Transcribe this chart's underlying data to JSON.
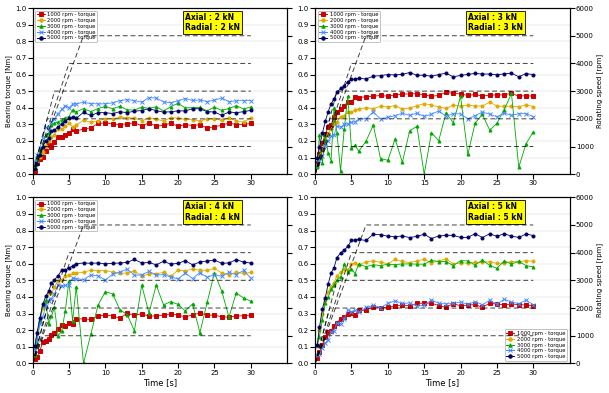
{
  "subplots": [
    {
      "label": "Axial : 2 kN\nRadial : 2 kN",
      "legend_loc": "upper left",
      "show_legend": true,
      "show_ylabel": true,
      "show_ylabel2": false,
      "show_xlabel": false,
      "torques": {
        "1000": {
          "final": 0.3,
          "tau": 2.8,
          "noise": 0.008
        },
        "2000": {
          "final": 0.33,
          "tau": 2.4,
          "noise": 0.008
        },
        "3000": {
          "final": 0.4,
          "tau": 2.2,
          "noise": 0.01
        },
        "4000": {
          "final": 0.44,
          "tau": 2.0,
          "noise": 0.012
        },
        "5000": {
          "final": 0.38,
          "tau": 2.5,
          "noise": 0.01
        }
      }
    },
    {
      "label": "Axial : 3 kN\nRadial : 3 kN",
      "legend_loc": "upper left",
      "show_legend": true,
      "show_ylabel": false,
      "show_ylabel2": true,
      "show_xlabel": false,
      "torques": {
        "1000": {
          "final": 0.48,
          "tau": 2.0,
          "noise": 0.008
        },
        "2000": {
          "final": 0.41,
          "tau": 2.0,
          "noise": 0.008
        },
        "3000": {
          "final": 0.28,
          "tau": 2.5,
          "noise": 0.05,
          "noisy": true
        },
        "4000": {
          "final": 0.36,
          "tau": 2.2,
          "noise": 0.012
        },
        "5000": {
          "final": 0.6,
          "tau": 1.8,
          "noise": 0.008
        }
      }
    },
    {
      "label": "Axial : 4 kN\nRadial : 4 kN",
      "legend_loc": "upper left",
      "show_legend": true,
      "show_ylabel": true,
      "show_ylabel2": false,
      "show_xlabel": true,
      "torques": {
        "1000": {
          "final": 0.29,
          "tau": 2.8,
          "noise": 0.008
        },
        "2000": {
          "final": 0.55,
          "tau": 1.6,
          "noise": 0.01
        },
        "3000": {
          "final": 0.35,
          "tau": 2.0,
          "noise": 0.04,
          "noisy": true
        },
        "4000": {
          "final": 0.53,
          "tau": 1.9,
          "noise": 0.015
        },
        "5000": {
          "final": 0.61,
          "tau": 1.7,
          "noise": 0.008
        }
      }
    },
    {
      "label": "Axial : 5 kN\nRadial : 5 kN",
      "legend_loc": "lower right",
      "show_legend": true,
      "show_ylabel": false,
      "show_ylabel2": true,
      "show_xlabel": true,
      "torques": {
        "1000": {
          "final": 0.35,
          "tau": 2.5,
          "noise": 0.008
        },
        "2000": {
          "final": 0.61,
          "tau": 1.5,
          "noise": 0.01
        },
        "3000": {
          "final": 0.6,
          "tau": 1.7,
          "noise": 0.015
        },
        "4000": {
          "final": 0.37,
          "tau": 2.8,
          "noise": 0.012
        },
        "5000": {
          "final": 0.77,
          "tau": 1.8,
          "noise": 0.01
        }
      }
    }
  ],
  "speeds": [
    1000,
    2000,
    3000,
    4000,
    5000
  ],
  "colors": {
    "1000": "#cc0000",
    "2000": "#ddaa00",
    "3000": "#00aa00",
    "4000": "#4488ff",
    "5000": "#000066"
  },
  "markers": {
    "1000": "s",
    "2000": "o",
    "3000": "^",
    "4000": "x",
    "5000": "o"
  },
  "filled": {
    "1000": true,
    "2000": true,
    "3000": true,
    "4000": false,
    "5000": true
  },
  "xlabel": "Time [s]",
  "ylabel": "Bearing torque [Nm]",
  "ylabel2": "Rotating speed [rpm]",
  "legend_labels": {
    "1000": "1000 rpm - torque",
    "2000": "2000 rpm - torque",
    "3000": "3000 rpm - torque",
    "4000": "4000 rpm - torque",
    "5000": "5000 rpm - torque"
  },
  "xlim": [
    0,
    35
  ],
  "ylim": [
    0,
    1.0
  ],
  "y2lim": [
    0,
    6000
  ],
  "xticks": [
    0,
    5,
    10,
    15,
    20,
    25,
    30
  ],
  "yticks": [
    0,
    0.1,
    0.2,
    0.3,
    0.4,
    0.5,
    0.6,
    0.7,
    0.8,
    0.9,
    1.0
  ],
  "y2ticks": [
    0,
    1000,
    2000,
    3000,
    4000,
    5000,
    6000
  ],
  "speed_ramp_times": {
    "1000": 1.5,
    "2000": 2.0,
    "3000": 3.0,
    "4000": 5.0,
    "5000": 7.0
  }
}
